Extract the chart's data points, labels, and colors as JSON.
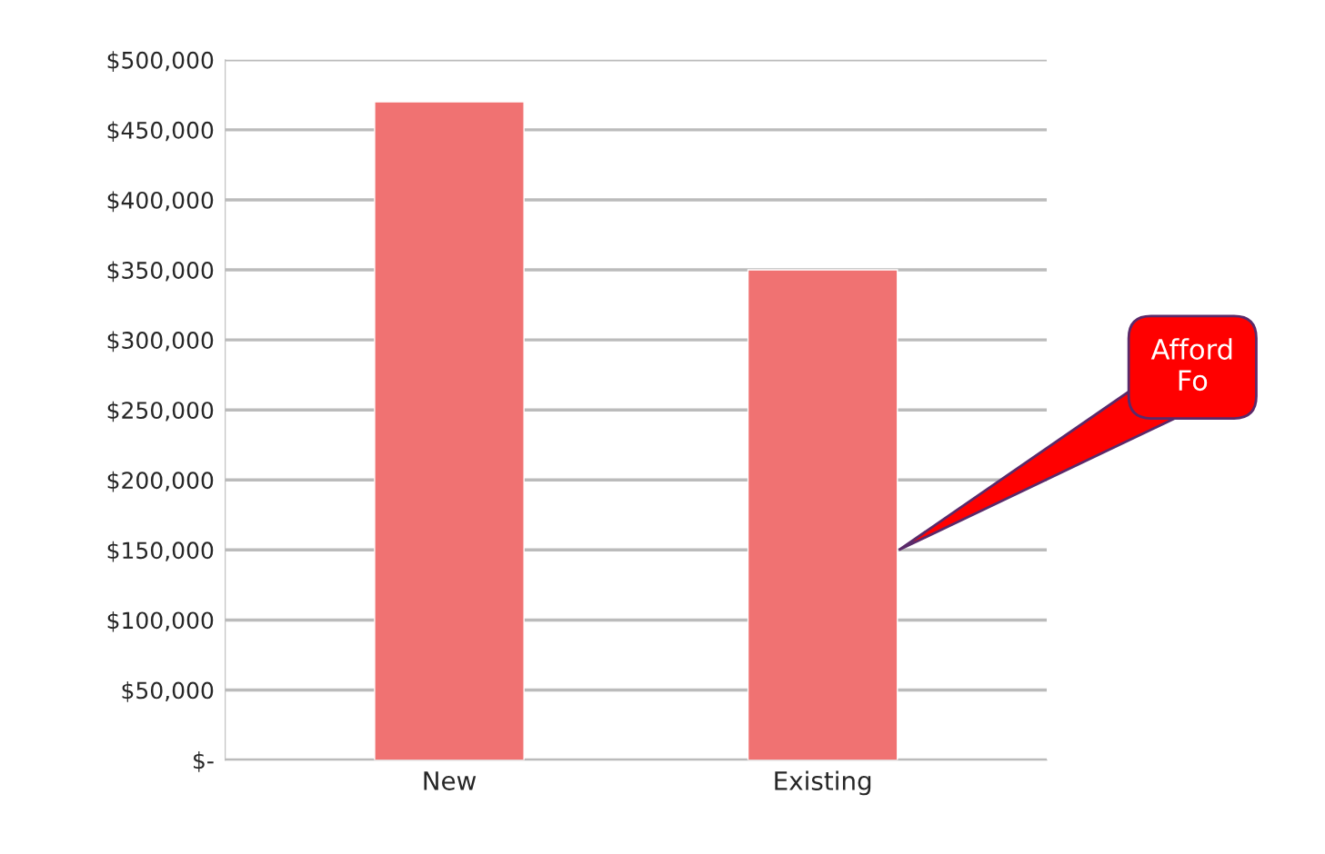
{
  "chart_data": {
    "type": "bar",
    "categories": [
      "New",
      "Existing"
    ],
    "values": [
      470000,
      350000
    ],
    "color": "#f07272",
    "ylim": [
      0,
      500000
    ],
    "yticks": [
      {
        "value": 0,
        "label": "$-"
      },
      {
        "value": 50000,
        "label": "$50,000"
      },
      {
        "value": 100000,
        "label": "$100,000"
      },
      {
        "value": 150000,
        "label": "$150,000"
      },
      {
        "value": 200000,
        "label": "$200,000"
      },
      {
        "value": 250000,
        "label": "$250,000"
      },
      {
        "value": 300000,
        "label": "$300,000"
      },
      {
        "value": 350000,
        "label": "$350,000"
      },
      {
        "value": 400000,
        "label": "$400,000"
      },
      {
        "value": 450000,
        "label": "$450,000"
      },
      {
        "value": 500000,
        "label": "$500,000"
      }
    ],
    "grid": "y",
    "annotations": [
      "Afford\nFo"
    ]
  }
}
